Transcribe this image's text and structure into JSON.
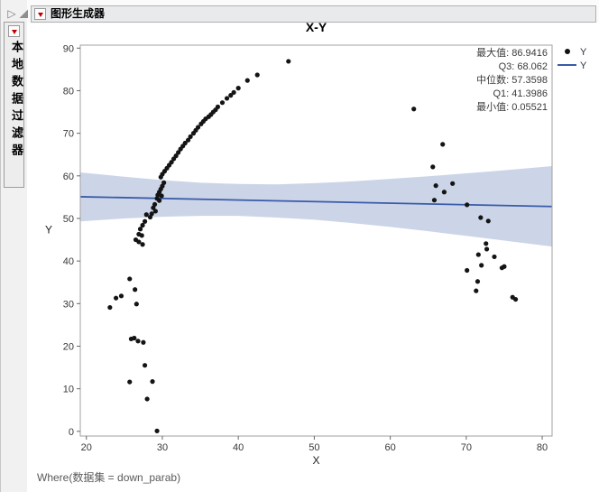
{
  "header": {
    "title": "图形生成器"
  },
  "sidebar": {
    "filter_title": "本地数据过滤器"
  },
  "footer": {
    "where_clause": "Where(数据集 = down_parab)"
  },
  "chart_data": {
    "type": "scatter",
    "title": "X-Y",
    "xlabel": "X",
    "ylabel": "Y",
    "x_range": [
      19.2,
      81.3
    ],
    "y_range": [
      -1.1,
      90.7
    ],
    "x_ticks": [
      20,
      30,
      40,
      50,
      60,
      70,
      80
    ],
    "y_ticks": [
      0,
      10,
      20,
      30,
      40,
      50,
      60,
      70,
      80,
      90
    ],
    "grid": false,
    "legend_position": "top-right-outside",
    "legend": [
      {
        "label": "Y",
        "marker": "dot",
        "color": "#111111"
      },
      {
        "label": "Y",
        "marker": "line",
        "color": "#3a5ba9"
      }
    ],
    "quantile_annotations": [
      "最大值: 86.9416",
      "Q3: 68.062",
      "中位数: 57.3598",
      "Q1: 41.3986",
      "最小值: 0.05521"
    ],
    "stats": {
      "max": 86.9416,
      "q3": 68.062,
      "median": 57.3598,
      "q1": 41.3986,
      "min": 0.05521
    },
    "points": [
      [
        46.6,
        86.9
      ],
      [
        42.5,
        83.7
      ],
      [
        41.2,
        82.4
      ],
      [
        40.0,
        80.6
      ],
      [
        39.4,
        79.6
      ],
      [
        39.0,
        78.9
      ],
      [
        38.5,
        78.2
      ],
      [
        37.9,
        77.2
      ],
      [
        37.3,
        76.2
      ],
      [
        37.0,
        75.5
      ],
      [
        36.7,
        75.0
      ],
      [
        36.4,
        74.4
      ],
      [
        36.1,
        73.9
      ],
      [
        35.7,
        73.4
      ],
      [
        35.4,
        72.8
      ],
      [
        35.1,
        72.2
      ],
      [
        34.7,
        71.4
      ],
      [
        34.4,
        70.7
      ],
      [
        34.1,
        70.0
      ],
      [
        33.7,
        69.2
      ],
      [
        33.4,
        68.4
      ],
      [
        33.0,
        67.7
      ],
      [
        32.7,
        67.0
      ],
      [
        32.4,
        66.3
      ],
      [
        32.1,
        65.5
      ],
      [
        31.8,
        64.7
      ],
      [
        31.5,
        64.0
      ],
      [
        31.2,
        63.2
      ],
      [
        30.9,
        62.5
      ],
      [
        30.6,
        61.8
      ],
      [
        30.3,
        61.1
      ],
      [
        30.0,
        60.4
      ],
      [
        29.8,
        59.7
      ],
      [
        30.2,
        58.4
      ],
      [
        30.0,
        57.6
      ],
      [
        29.8,
        56.9
      ],
      [
        29.6,
        56.2
      ],
      [
        29.9,
        55.3
      ],
      [
        29.4,
        55.5
      ],
      [
        29.3,
        54.7
      ],
      [
        29.6,
        54.2
      ],
      [
        29.0,
        53.3
      ],
      [
        28.8,
        52.5
      ],
      [
        29.1,
        51.7
      ],
      [
        28.6,
        51.1
      ],
      [
        28.4,
        50.3
      ],
      [
        27.9,
        50.9
      ],
      [
        27.7,
        49.3
      ],
      [
        27.4,
        48.4
      ],
      [
        27.1,
        47.5
      ],
      [
        26.9,
        46.3
      ],
      [
        27.3,
        46.0
      ],
      [
        26.5,
        45.0
      ],
      [
        26.9,
        44.5
      ],
      [
        27.4,
        43.9
      ],
      [
        25.7,
        35.8
      ],
      [
        26.4,
        33.3
      ],
      [
        24.6,
        31.8
      ],
      [
        23.9,
        31.3
      ],
      [
        23.1,
        29.1
      ],
      [
        26.6,
        29.9
      ],
      [
        25.9,
        21.7
      ],
      [
        26.3,
        21.9
      ],
      [
        26.8,
        21.2
      ],
      [
        27.5,
        20.9
      ],
      [
        27.7,
        15.5
      ],
      [
        25.7,
        11.6
      ],
      [
        28.7,
        11.7
      ],
      [
        28.0,
        7.6
      ],
      [
        29.3,
        0.1
      ],
      [
        63.1,
        75.7
      ],
      [
        66.9,
        67.4
      ],
      [
        65.6,
        62.1
      ],
      [
        66.0,
        57.7
      ],
      [
        68.2,
        58.2
      ],
      [
        67.1,
        56.2
      ],
      [
        65.8,
        54.3
      ],
      [
        70.1,
        53.2
      ],
      [
        71.9,
        50.2
      ],
      [
        72.9,
        49.4
      ],
      [
        72.6,
        44.1
      ],
      [
        72.7,
        42.8
      ],
      [
        71.6,
        41.5
      ],
      [
        73.7,
        41.0
      ],
      [
        72.0,
        39.0
      ],
      [
        70.1,
        37.8
      ],
      [
        74.7,
        38.4
      ],
      [
        75.0,
        38.7
      ],
      [
        71.5,
        35.2
      ],
      [
        71.3,
        33.0
      ],
      [
        76.1,
        31.5
      ],
      [
        76.5,
        31.0
      ]
    ],
    "fit": {
      "name": "Y",
      "line_color": "#3a5ba9",
      "band_color": "#ccd5e8",
      "line": {
        "x": [
          19.2,
          81.3
        ],
        "y": [
          55.1,
          52.8
        ]
      },
      "band": {
        "x": [
          19.2,
          25,
          30,
          35,
          40,
          45,
          50,
          55,
          60,
          65,
          70,
          75,
          81.3
        ],
        "top": [
          60.8,
          59.8,
          59.0,
          58.4,
          58.1,
          58.0,
          58.3,
          58.7,
          59.3,
          59.9,
          60.6,
          61.3,
          62.3
        ],
        "bottom": [
          49.3,
          50.0,
          50.4,
          50.6,
          50.6,
          50.2,
          49.7,
          48.9,
          48.0,
          47.0,
          45.9,
          44.8,
          43.4
        ]
      }
    },
    "colors": {
      "point": "#141414",
      "frame": "#a0a0a0",
      "tick_text": "#383838",
      "stats_text": "#3a3a3a",
      "red_triangle": "#c00000"
    }
  }
}
